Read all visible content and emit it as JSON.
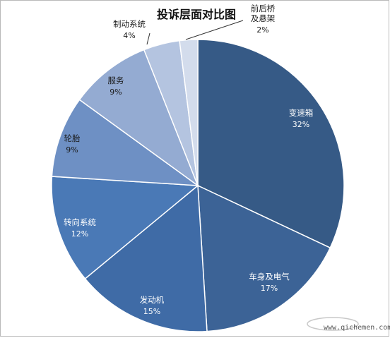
{
  "chart_data": {
    "type": "pie",
    "title": "投诉层面对比图",
    "slices": [
      {
        "label": "变速箱",
        "value": 32,
        "value_text": "32%",
        "color": "#365a86"
      },
      {
        "label": "车身及电气",
        "value": 17,
        "value_text": "17%",
        "color": "#3c6396"
      },
      {
        "label": "发动机",
        "value": 15,
        "value_text": "15%",
        "color": "#3f6ba6"
      },
      {
        "label": "转向系统",
        "value": 12,
        "value_text": "12%",
        "color": "#4a79b6"
      },
      {
        "label": "轮胎",
        "value": 9,
        "value_text": "9%",
        "color": "#6e90c4"
      },
      {
        "label": "服务",
        "value": 9,
        "value_text": "9%",
        "color": "#94abd2"
      },
      {
        "label": "制动系统",
        "value": 4,
        "value_text": "4%",
        "color": "#b4c4e0"
      },
      {
        "label": "前后桥\n及悬架",
        "value": 2,
        "value_text": "2%",
        "color": "#d3dcec"
      }
    ],
    "legend": "none"
  },
  "watermark": {
    "text": "www.qichemen.com"
  }
}
